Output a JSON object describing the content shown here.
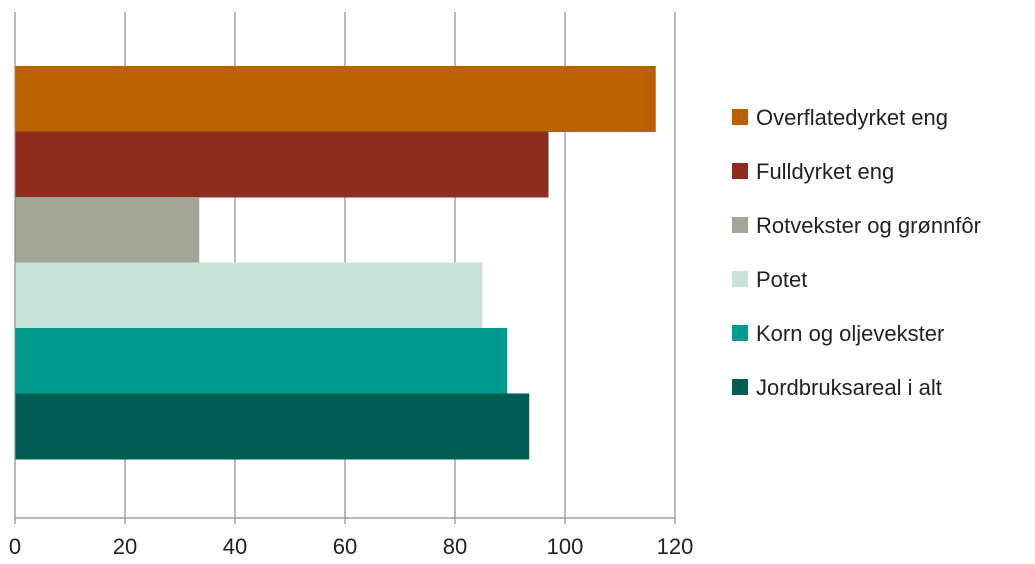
{
  "chart_data": {
    "type": "bar",
    "orientation": "horizontal",
    "title": "",
    "xlabel": "",
    "ylabel": "",
    "xlim": [
      0,
      120
    ],
    "x_ticks": [
      0,
      20,
      40,
      60,
      80,
      100,
      120
    ],
    "grid": "vertical",
    "legend_position": "right",
    "series": [
      {
        "name": "Overflatedyrket eng",
        "value": 116.5,
        "color": "#bb6200"
      },
      {
        "name": "Fulldyrket eng",
        "value": 97,
        "color": "#8e2c1e"
      },
      {
        "name": "Rotvekster og grønnfôr",
        "value": 33.5,
        "color": "#a3a595"
      },
      {
        "name": "Potet",
        "value": 85,
        "color": "#c8e4d9"
      },
      {
        "name": "Korn og oljevekster",
        "value": 89.5,
        "color": "#009c8f"
      },
      {
        "name": "Jordbruksareal i alt",
        "value": 93.5,
        "color": "#005e55"
      }
    ]
  }
}
